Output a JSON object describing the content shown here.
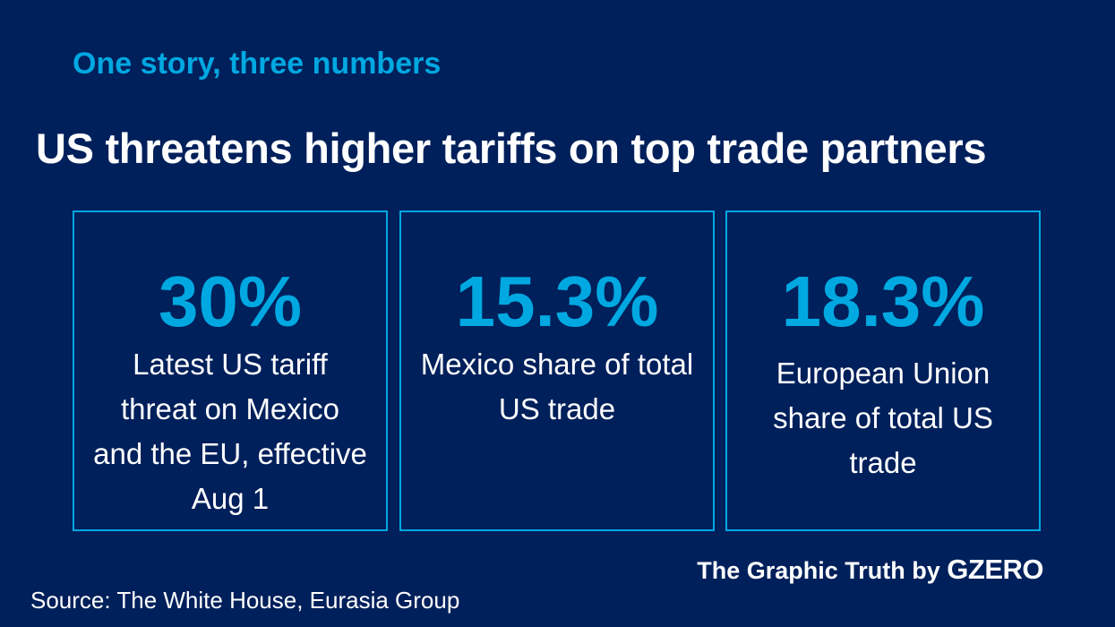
{
  "kicker": "One story, three numbers",
  "title": "US threatens higher tariffs on top trade partners",
  "cards": [
    {
      "value": "30%",
      "description": "Latest US tariff threat on Mexico and the EU, effective Aug 1"
    },
    {
      "value": "15.3%",
      "description": "Mexico share of total US trade"
    },
    {
      "value": "18.3%",
      "description": "European Union share of total US trade"
    }
  ],
  "brand": {
    "prefix": "The Graphic Truth by",
    "logo": "GZERO"
  },
  "source": "Source: The White House, Eurasia Group",
  "colors": {
    "background": "#00205b",
    "accent": "#00a8e1",
    "text": "#ffffff"
  }
}
